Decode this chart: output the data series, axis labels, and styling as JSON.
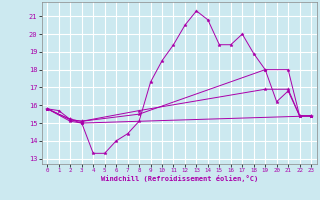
{
  "xlabel": "Windchill (Refroidissement éolien,°C)",
  "xlim": [
    -0.5,
    23.5
  ],
  "ylim": [
    12.7,
    21.8
  ],
  "yticks": [
    13,
    14,
    15,
    16,
    17,
    18,
    19,
    20,
    21
  ],
  "xticks": [
    0,
    1,
    2,
    3,
    4,
    5,
    6,
    7,
    8,
    9,
    10,
    11,
    12,
    13,
    14,
    15,
    16,
    17,
    18,
    19,
    20,
    21,
    22,
    23
  ],
  "bg_color": "#cce9f0",
  "grid_color": "#ffffff",
  "line_color": "#aa00aa",
  "line1_x": [
    0,
    1,
    2,
    3,
    4,
    5,
    6,
    7,
    8,
    9,
    10,
    11,
    12,
    13,
    14,
    15,
    16,
    17,
    18,
    19,
    20,
    21,
    22,
    23
  ],
  "line1_y": [
    15.8,
    15.7,
    15.2,
    15.0,
    13.3,
    13.3,
    14.0,
    14.4,
    15.1,
    17.3,
    18.5,
    19.4,
    20.5,
    21.3,
    20.8,
    19.4,
    19.4,
    20.0,
    18.9,
    18.0,
    16.2,
    16.8,
    15.4,
    15.4
  ],
  "line2_x": [
    0,
    2,
    3,
    8,
    19,
    21,
    22,
    23
  ],
  "line2_y": [
    15.8,
    15.2,
    15.1,
    15.5,
    18.0,
    18.0,
    15.4,
    15.4
  ],
  "line3_x": [
    0,
    2,
    3,
    8,
    19,
    21,
    22,
    23
  ],
  "line3_y": [
    15.8,
    15.2,
    15.1,
    15.7,
    16.9,
    16.9,
    15.4,
    15.4
  ],
  "line4_x": [
    0,
    2,
    3,
    23
  ],
  "line4_y": [
    15.8,
    15.1,
    15.0,
    15.4
  ]
}
